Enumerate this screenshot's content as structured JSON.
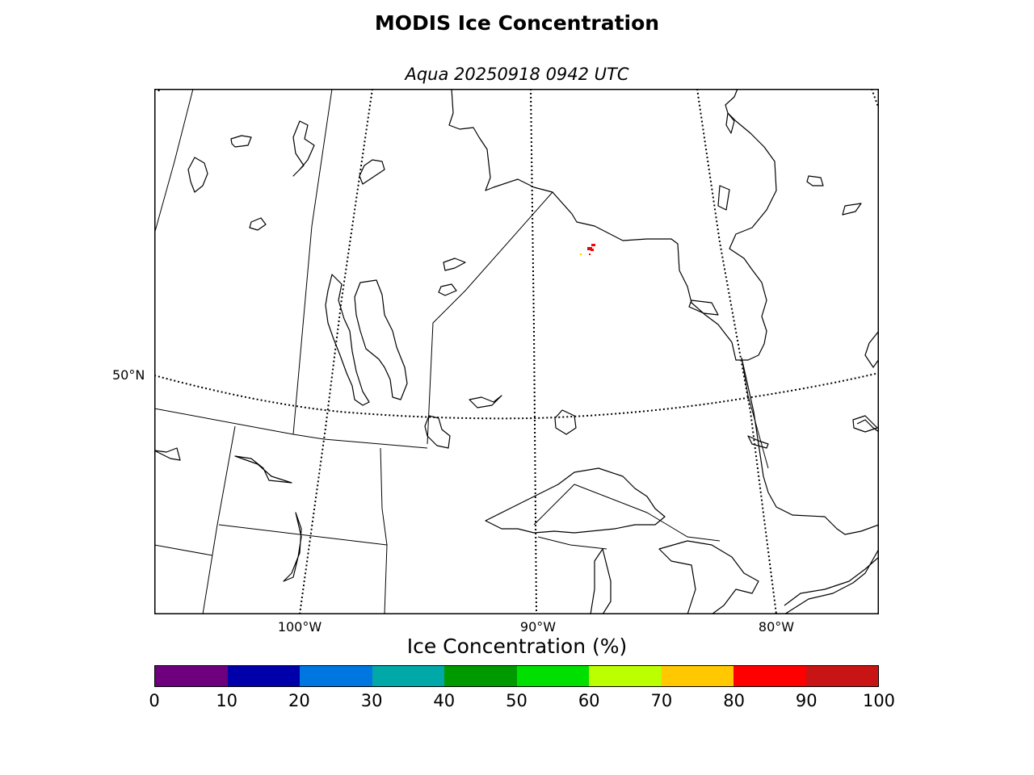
{
  "header": {
    "title": "MODIS Ice Concentration",
    "subtitle": "Aqua 20250918 0942 UTC"
  },
  "map": {
    "lat_labels": [
      "50°N"
    ],
    "lon_labels": [
      "100°W",
      "90°W",
      "80°W"
    ],
    "coast_color": "#000000",
    "ice_pixel_colors": [
      "#ff0000",
      "#c81414",
      "#ffc800"
    ]
  },
  "colorbar": {
    "label": "Ice Concentration (%)",
    "ticks": [
      "0",
      "10",
      "20",
      "30",
      "40",
      "50",
      "60",
      "70",
      "80",
      "90",
      "100"
    ],
    "colors": [
      "#6e007e",
      "#0000aa",
      "#0077e0",
      "#00a8a8",
      "#009a00",
      "#00e000",
      "#bbff00",
      "#ffc800",
      "#ff0000",
      "#c81414"
    ]
  }
}
